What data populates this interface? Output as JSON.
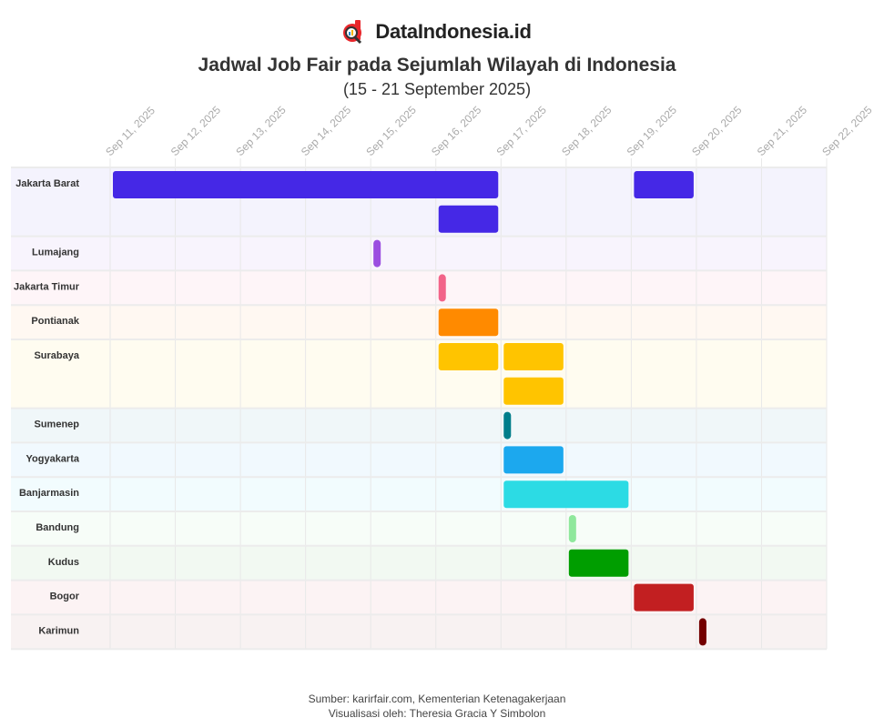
{
  "brand": {
    "name": "DataIndonesia.id",
    "logo_icon": "magnifier-d-logo-icon",
    "accent": "#e8262b"
  },
  "title": "Jadwal Job Fair pada Sejumlah Wilayah di Indonesia",
  "subtitle": "(15 - 21 September 2025)",
  "footer": {
    "source": "Sumber: karirfair.com, Kementerian Ketenagakerjaan",
    "credit": "Visualisasi oleh: Theresia Gracia Y Simbolon"
  },
  "chart_data": {
    "type": "gantt",
    "title": "Jadwal Job Fair pada Sejumlah Wilayah di Indonesia",
    "subtitle": "(15 - 21 September 2025)",
    "x_range": [
      "2025-09-11",
      "2025-09-22"
    ],
    "x_ticks": [
      "Sep 11, 2025",
      "Sep 12, 2025",
      "Sep 13, 2025",
      "Sep 14, 2025",
      "Sep 15, 2025",
      "Sep 16, 2025",
      "Sep 17, 2025",
      "Sep 18, 2025",
      "Sep 19, 2025",
      "Sep 20, 2025",
      "Sep 21, 2025",
      "Sep 22, 2025"
    ],
    "grid": true,
    "rows": [
      {
        "name": "Jakarta Barat",
        "color": "#4528e6",
        "bg": "#f4f3fd",
        "lanes": 2,
        "events": [
          {
            "start": "2025-09-11",
            "end": "2025-09-17",
            "lane": 0
          },
          {
            "start": "2025-09-16",
            "end": "2025-09-17",
            "lane": 1
          },
          {
            "start": "2025-09-19",
            "end": "2025-09-20",
            "lane": 0
          }
        ]
      },
      {
        "name": "Lumajang",
        "color": "#9b4ee0",
        "bg": "#f8f4fd",
        "lanes": 1,
        "events": [
          {
            "start": "2025-09-15",
            "end": "2025-09-15",
            "lane": 0
          }
        ]
      },
      {
        "name": "Jakarta Timur",
        "color": "#f26489",
        "bg": "#fef5f8",
        "lanes": 1,
        "events": [
          {
            "start": "2025-09-16",
            "end": "2025-09-16",
            "lane": 0
          }
        ]
      },
      {
        "name": "Pontianak",
        "color": "#ff8a00",
        "bg": "#fff8f2",
        "lanes": 1,
        "events": [
          {
            "start": "2025-09-16",
            "end": "2025-09-17",
            "lane": 0
          }
        ]
      },
      {
        "name": "Surabaya",
        "color": "#ffc400",
        "bg": "#fffcf0",
        "lanes": 2,
        "events": [
          {
            "start": "2025-09-16",
            "end": "2025-09-17",
            "lane": 0
          },
          {
            "start": "2025-09-17",
            "end": "2025-09-18",
            "lane": 0
          },
          {
            "start": "2025-09-17",
            "end": "2025-09-18",
            "lane": 1
          }
        ]
      },
      {
        "name": "Sumenep",
        "color": "#007d8a",
        "bg": "#f0f7f9",
        "lanes": 1,
        "events": [
          {
            "start": "2025-09-17",
            "end": "2025-09-17",
            "lane": 0
          }
        ]
      },
      {
        "name": "Yogyakarta",
        "color": "#1ca8ee",
        "bg": "#f1f9fe",
        "lanes": 1,
        "events": [
          {
            "start": "2025-09-17",
            "end": "2025-09-18",
            "lane": 0
          }
        ]
      },
      {
        "name": "Banjarmasin",
        "color": "#2cdbe4",
        "bg": "#f2fcfe",
        "lanes": 1,
        "events": [
          {
            "start": "2025-09-17",
            "end": "2025-09-19",
            "lane": 0
          }
        ]
      },
      {
        "name": "Bandung",
        "color": "#8fe89c",
        "bg": "#f7fdf8",
        "lanes": 1,
        "events": [
          {
            "start": "2025-09-18",
            "end": "2025-09-18",
            "lane": 0
          }
        ]
      },
      {
        "name": "Kudus",
        "color": "#009e00",
        "bg": "#f2f9f2",
        "lanes": 1,
        "events": [
          {
            "start": "2025-09-18",
            "end": "2025-09-19",
            "lane": 0
          }
        ]
      },
      {
        "name": "Bogor",
        "color": "#c21f21",
        "bg": "#fcf3f4",
        "lanes": 1,
        "events": [
          {
            "start": "2025-09-19",
            "end": "2025-09-20",
            "lane": 0
          }
        ]
      },
      {
        "name": "Karimun",
        "color": "#730000",
        "bg": "#f8f2f2",
        "lanes": 1,
        "events": [
          {
            "start": "2025-09-20",
            "end": "2025-09-20",
            "lane": 0
          }
        ]
      }
    ]
  }
}
